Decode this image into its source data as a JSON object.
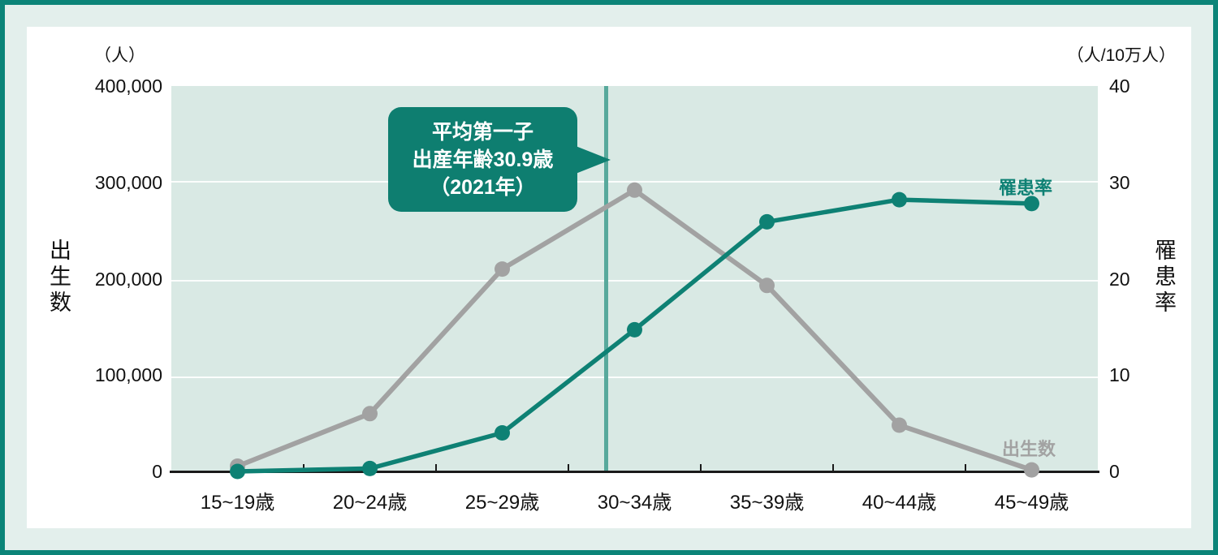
{
  "units": {
    "left": "（人）",
    "right": "（人/10万人）"
  },
  "axes": {
    "left_title": "出生数",
    "right_title": "罹患率",
    "left_tick_labels": [
      "400,000",
      "300,000",
      "200,000",
      "100,000",
      "0"
    ],
    "right_tick_labels": [
      "40",
      "30",
      "20",
      "10",
      "0"
    ]
  },
  "series_labels": {
    "rate": "罹患率",
    "births": "出生数"
  },
  "annotation": {
    "lines": [
      "平均第一子",
      "出産年齢30.9歳",
      "（2021年）"
    ],
    "age": 30.9
  },
  "colors": {
    "frame_border": "#0b8478",
    "frame_margin": "#e3efec",
    "card": "#ffffff",
    "plot_background": "#d9e9e4",
    "gridline": "#fbfdfc",
    "births_series": "#a2a2a2",
    "rate_series": "#0e8174",
    "marker_line": "#58a99c",
    "callout_background": "#0e7e70",
    "text": "#111111"
  },
  "chart_data": {
    "type": "line",
    "categories": [
      "15~19歳",
      "20~24歳",
      "25~29歳",
      "30~34歳",
      "35~39歳",
      "40~44歳",
      "45~49歳"
    ],
    "series": [
      {
        "name": "出生数",
        "axis": "left",
        "values": [
          5500,
          60000,
          210000,
          292000,
          193000,
          48000,
          1600
        ]
      },
      {
        "name": "罹患率",
        "axis": "right",
        "values": [
          0,
          0.3,
          4.0,
          14.7,
          25.9,
          28.2,
          27.8
        ]
      }
    ],
    "left_axis": {
      "label": "出生数",
      "unit": "人",
      "range": [
        0,
        400000
      ],
      "ticks": [
        400000,
        300000,
        200000,
        100000,
        0
      ]
    },
    "right_axis": {
      "label": "罹患率",
      "unit": "人/10万人",
      "range": [
        0,
        40
      ],
      "ticks": [
        40,
        30,
        20,
        10,
        0
      ]
    },
    "annotation": {
      "text": "平均第一子出産年齢30.9歳（2021年）",
      "x_age": 30.9
    },
    "grid": true,
    "legend_position": "inline-end-of-line"
  }
}
